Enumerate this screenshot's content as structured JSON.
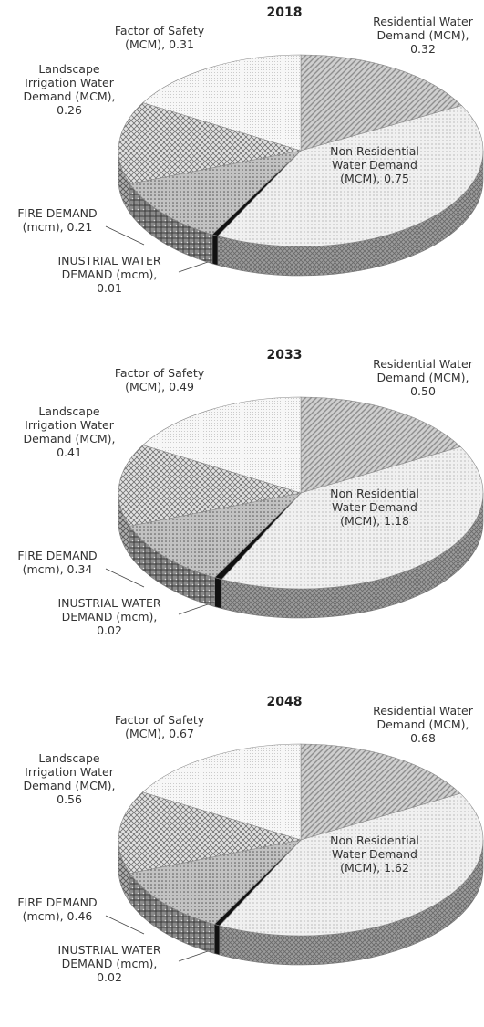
{
  "chart_data": [
    {
      "type": "pie",
      "title": "2018",
      "categories": [
        "Residential Water Demand (MCM)",
        "Non Residential Water Demand (MCM)",
        "INUSTRIAL WATER DEMAND (mcm)",
        "FIRE DEMAND (mcm)",
        "Landscape Irrigation Water Demand (MCM)",
        "Factor of Safety (MCM)"
      ],
      "values": [
        0.32,
        0.75,
        0.01,
        0.21,
        0.26,
        0.31
      ],
      "labels": {
        "residential": [
          "Residential Water",
          "Demand (MCM),",
          "0.32"
        ],
        "nonres": [
          "Non Residential",
          "Water Demand",
          "(MCM), 0.75"
        ],
        "industrial": [
          "INUSTRIAL WATER",
          "DEMAND (mcm),",
          "0.01"
        ],
        "fire": [
          "FIRE DEMAND",
          "(mcm), 0.21"
        ],
        "landscape": [
          "Landscape",
          "Irrigation Water",
          "Demand (MCM),",
          "0.26"
        ],
        "safety": [
          "Factor of Safety",
          "(MCM), 0.31"
        ]
      }
    },
    {
      "type": "pie",
      "title": "2033",
      "categories": [
        "Residential Water Demand (MCM)",
        "Non Residential Water Demand (MCM)",
        "INUSTRIAL WATER DEMAND (mcm)",
        "FIRE DEMAND (mcm)",
        "Landscape Irrigation Water Demand (MCM)",
        "Factor of Safety (MCM)"
      ],
      "values": [
        0.5,
        1.18,
        0.02,
        0.34,
        0.41,
        0.49
      ],
      "labels": {
        "residential": [
          "Residential Water",
          "Demand (MCM),",
          "0.50"
        ],
        "nonres": [
          "Non Residential",
          "Water Demand",
          "(MCM), 1.18"
        ],
        "industrial": [
          "INUSTRIAL WATER",
          "DEMAND (mcm),",
          "0.02"
        ],
        "fire": [
          "FIRE DEMAND",
          "(mcm), 0.34"
        ],
        "landscape": [
          "Landscape",
          "Irrigation Water",
          "Demand (MCM),",
          "0.41"
        ],
        "safety": [
          "Factor of Safety",
          "(MCM), 0.49"
        ]
      }
    },
    {
      "type": "pie",
      "title": "2048",
      "categories": [
        "Residential Water Demand (MCM)",
        "Non Residential Water Demand (MCM)",
        "INUSTRIAL WATER DEMAND (mcm)",
        "FIRE DEMAND (mcm)",
        "Landscape Irrigation Water Demand (MCM)",
        "Factor of Safety (MCM)"
      ],
      "values": [
        0.68,
        1.62,
        0.02,
        0.46,
        0.56,
        0.67
      ],
      "labels": {
        "residential": [
          "Residential Water",
          "Demand (MCM),",
          "0.68"
        ],
        "nonres": [
          "Non Residential",
          "Water Demand",
          "(MCM), 1.62"
        ],
        "industrial": [
          "INUSTRIAL WATER",
          "DEMAND (mcm),",
          "0.02"
        ],
        "fire": [
          "FIRE DEMAND",
          "(mcm), 0.46"
        ],
        "landscape": [
          "Landscape",
          "Irrigation Water",
          "Demand (MCM),",
          "0.56"
        ],
        "safety": [
          "Factor of Safety",
          "(MCM), 0.67"
        ]
      }
    }
  ]
}
